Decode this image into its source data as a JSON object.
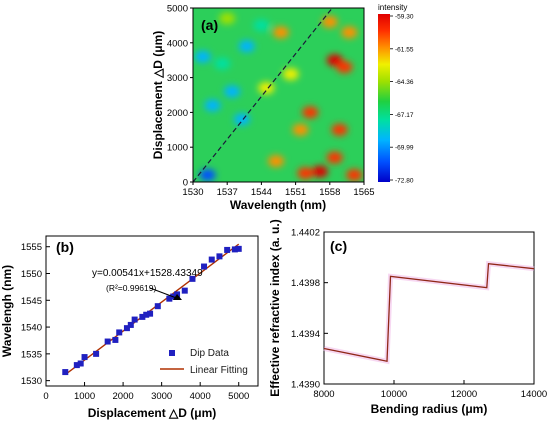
{
  "chart_data": [
    {
      "type": "heatmap",
      "panel_label": "(a)",
      "xlabel": "Wavelength (nm)",
      "ylabel": "Displacement △D (μm)",
      "xlim": [
        1530,
        1565
      ],
      "ylim": [
        0,
        5000
      ],
      "xticks": [
        "1530",
        "1537",
        "1544",
        "1551",
        "1558",
        "1565"
      ],
      "yticks": [
        "0",
        "1000",
        "2000",
        "3000",
        "4000",
        "5000"
      ],
      "colorbar": {
        "title": "intensity",
        "ticks": [
          "-59.30",
          "-61.55",
          "-64.36",
          "-67.17",
          "-69.99",
          "-72.80"
        ],
        "range": [
          -72.8,
          -59.3
        ],
        "colors": [
          "#0000c8",
          "#0050ff",
          "#00b4ff",
          "#00e0a0",
          "#20d040",
          "#a0e000",
          "#f0f000",
          "#ff9000",
          "#ff3000",
          "#e00000"
        ]
      },
      "dip_trend": {
        "x": [
          1530,
          1558.5
        ],
        "y": [
          0,
          5000
        ]
      },
      "features": [
        {
          "x": 1532,
          "y": 3600,
          "v": -70.5
        },
        {
          "x": 1533,
          "y": 200,
          "v": -72.0
        },
        {
          "x": 1534,
          "y": 2200,
          "v": -70.0
        },
        {
          "x": 1536,
          "y": 3400,
          "v": -69.0
        },
        {
          "x": 1538,
          "y": 2600,
          "v": -70.5
        },
        {
          "x": 1540,
          "y": 1800,
          "v": -70.0
        },
        {
          "x": 1541,
          "y": 3900,
          "v": -69.5
        },
        {
          "x": 1544,
          "y": 4500,
          "v": -69.0
        },
        {
          "x": 1537,
          "y": 4700,
          "v": -66.0
        },
        {
          "x": 1548,
          "y": 4300,
          "v": -63.0
        },
        {
          "x": 1558,
          "y": 4600,
          "v": -62.5
        },
        {
          "x": 1559,
          "y": 3500,
          "v": -59.8
        },
        {
          "x": 1561,
          "y": 3300,
          "v": -61.0
        },
        {
          "x": 1562,
          "y": 4300,
          "v": -62.5
        },
        {
          "x": 1560,
          "y": 1500,
          "v": -60.8
        },
        {
          "x": 1554,
          "y": 2000,
          "v": -61.0
        },
        {
          "x": 1552,
          "y": 1500,
          "v": -61.8
        },
        {
          "x": 1556,
          "y": 300,
          "v": -59.6
        },
        {
          "x": 1553,
          "y": 250,
          "v": -60.5
        },
        {
          "x": 1559,
          "y": 700,
          "v": -60.6
        },
        {
          "x": 1563,
          "y": 200,
          "v": -61.2
        },
        {
          "x": 1547,
          "y": 600,
          "v": -63.0
        },
        {
          "x": 1545,
          "y": 2700,
          "v": -64.0
        },
        {
          "x": 1550,
          "y": 3100,
          "v": -63.5
        }
      ]
    },
    {
      "type": "scatter",
      "panel_label": "(b)",
      "xlabel": "Displacement △D (μm)",
      "ylabel": "Wavelengh (nm)",
      "xlim": [
        0,
        5500
      ],
      "ylim": [
        1529,
        1557
      ],
      "xticks": [
        "0",
        "1000",
        "2000",
        "3000",
        "4000",
        "5000"
      ],
      "yticks": [
        "1530",
        "1535",
        "1540",
        "1545",
        "1550",
        "1555"
      ],
      "legend": {
        "position": "lower-right",
        "entries": [
          "Dip Data",
          "Linear Fitting"
        ]
      },
      "equation": "y=0.00541x+1528.43349",
      "r2_text": "(R²=0.99619)",
      "fit": {
        "slope": 0.00541,
        "intercept": 1528.43349,
        "x_range": [
          500,
          5000
        ],
        "color": "#b03000"
      },
      "series": [
        {
          "name": "Dip Data",
          "color": "#2020c0",
          "x": [
            500,
            800,
            900,
            1000,
            1300,
            1600,
            1800,
            1900,
            2100,
            2200,
            2300,
            2500,
            2600,
            2700,
            2900,
            3200,
            3300,
            3400,
            3600,
            3800,
            4100,
            4300,
            4500,
            4700,
            4900,
            5000
          ],
          "y": [
            1531.6,
            1532.9,
            1533.2,
            1534.4,
            1535.0,
            1537.3,
            1537.6,
            1539.0,
            1539.8,
            1540.4,
            1541.4,
            1541.9,
            1542.3,
            1542.5,
            1543.9,
            1545.3,
            1545.7,
            1546.1,
            1546.8,
            1549.0,
            1551.3,
            1552.6,
            1553.2,
            1554.4,
            1554.5,
            1554.6
          ]
        }
      ]
    },
    {
      "type": "line",
      "panel_label": "(c)",
      "xlabel": "Bending radius (μm)",
      "ylabel": "Effective refractive index (a. u.)",
      "xlim": [
        8000,
        14000
      ],
      "ylim": [
        1.439,
        1.4402
      ],
      "xticks": [
        "8000",
        "10000",
        "12000",
        "14000"
      ],
      "yticks": [
        "1.4390",
        "1.4394",
        "1.4398",
        "1.4402"
      ],
      "series": [
        {
          "color": "#902818",
          "x": [
            8000,
            9800,
            9900,
            12650,
            12700,
            14000
          ],
          "y": [
            1.43928,
            1.43918,
            1.43985,
            1.43976,
            1.43995,
            1.43991
          ]
        }
      ]
    }
  ]
}
